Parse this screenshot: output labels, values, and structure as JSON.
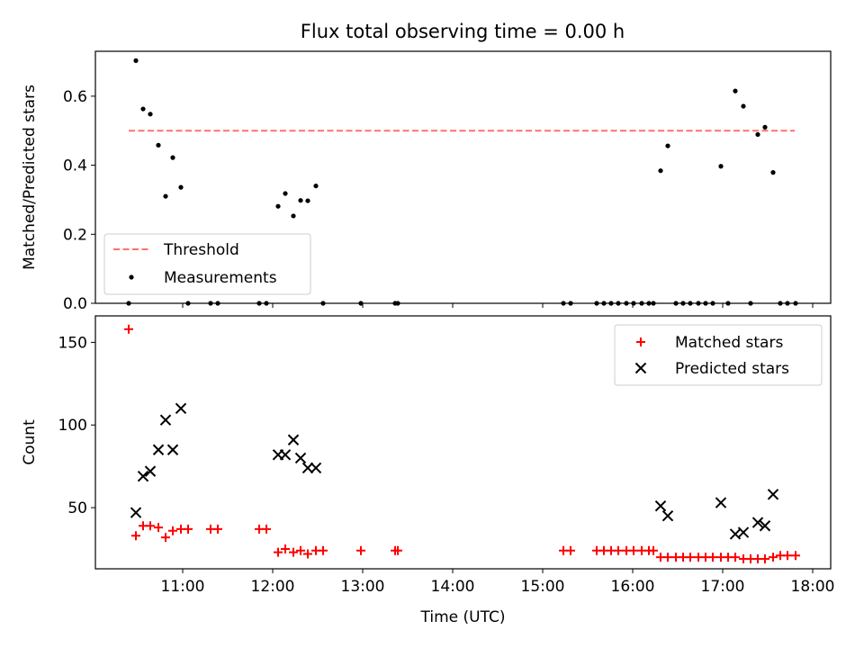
{
  "chart_data": [
    {
      "type": "scatter",
      "title": "Flux total observing time = 0.00 h",
      "xlabel": "",
      "ylabel": "Matched/Predicted stars",
      "xlim": [
        10.03,
        18.2
      ],
      "ylim": [
        0,
        0.73
      ],
      "yticks": [
        0.0,
        0.2,
        0.4,
        0.6
      ],
      "ytick_labels": [
        "0.0",
        "0.2",
        "0.4",
        "0.6"
      ],
      "grid": false,
      "legend_position": "lower-left",
      "threshold": {
        "name": "Threshold",
        "y": 0.5,
        "x_start": 10.4,
        "x_end": 17.8,
        "color": "#ff7070"
      },
      "series": [
        {
          "name": "Measurements",
          "color": "#000000",
          "points": [
            [
              10.4,
              0.0
            ],
            [
              10.48,
              0.703
            ],
            [
              10.56,
              0.563
            ],
            [
              10.64,
              0.548
            ],
            [
              10.73,
              0.458
            ],
            [
              10.81,
              0.31
            ],
            [
              10.89,
              0.422
            ],
            [
              10.98,
              0.336
            ],
            [
              11.06,
              0.0
            ],
            [
              11.31,
              0.0
            ],
            [
              11.39,
              0.0
            ],
            [
              11.85,
              0.0
            ],
            [
              11.93,
              0.0
            ],
            [
              12.06,
              0.281
            ],
            [
              12.14,
              0.318
            ],
            [
              12.23,
              0.253
            ],
            [
              12.31,
              0.298
            ],
            [
              12.39,
              0.297
            ],
            [
              12.48,
              0.34
            ],
            [
              12.56,
              0.0
            ],
            [
              12.98,
              0.0
            ],
            [
              13.36,
              0.0
            ],
            [
              13.39,
              0.0
            ],
            [
              15.23,
              0.0
            ],
            [
              15.31,
              0.0
            ],
            [
              15.6,
              0.0
            ],
            [
              15.68,
              0.0
            ],
            [
              15.76,
              0.0
            ],
            [
              15.84,
              0.0
            ],
            [
              15.93,
              0.0
            ],
            [
              16.01,
              0.0
            ],
            [
              16.1,
              0.0
            ],
            [
              16.18,
              0.0
            ],
            [
              16.23,
              0.0
            ],
            [
              16.31,
              0.384
            ],
            [
              16.39,
              0.456
            ],
            [
              16.48,
              0.0
            ],
            [
              16.56,
              0.0
            ],
            [
              16.64,
              0.0
            ],
            [
              16.73,
              0.0
            ],
            [
              16.81,
              0.0
            ],
            [
              16.89,
              0.0
            ],
            [
              16.98,
              0.397
            ],
            [
              17.06,
              0.0
            ],
            [
              17.14,
              0.615
            ],
            [
              17.23,
              0.571
            ],
            [
              17.31,
              0.0
            ],
            [
              17.39,
              0.489
            ],
            [
              17.47,
              0.51
            ],
            [
              17.56,
              0.379
            ],
            [
              17.64,
              0.0
            ],
            [
              17.72,
              0.0
            ],
            [
              17.81,
              0.0
            ]
          ]
        }
      ]
    },
    {
      "type": "scatter",
      "title": "",
      "xlabel": "Time (UTC)",
      "ylabel": "Count",
      "xlim": [
        10.03,
        18.2
      ],
      "ylim": [
        13,
        166
      ],
      "yticks": [
        50,
        100,
        150
      ],
      "ytick_labels": [
        "50",
        "100",
        "150"
      ],
      "xticks": [
        11,
        12,
        13,
        14,
        15,
        16,
        17,
        18
      ],
      "xtick_labels": [
        "11:00",
        "12:00",
        "13:00",
        "14:00",
        "15:00",
        "16:00",
        "17:00",
        "18:00"
      ],
      "grid": false,
      "legend_position": "upper-right",
      "series": [
        {
          "name": "Matched stars",
          "color": "#ff0000",
          "marker": "plus",
          "points": [
            [
              10.4,
              158
            ],
            [
              10.48,
              33
            ],
            [
              10.56,
              39
            ],
            [
              10.64,
              39
            ],
            [
              10.73,
              38
            ],
            [
              10.81,
              32
            ],
            [
              10.89,
              36
            ],
            [
              10.98,
              37
            ],
            [
              11.06,
              37
            ],
            [
              11.31,
              37
            ],
            [
              11.39,
              37
            ],
            [
              11.85,
              37
            ],
            [
              11.93,
              37
            ],
            [
              12.06,
              23
            ],
            [
              12.14,
              25
            ],
            [
              12.23,
              23
            ],
            [
              12.31,
              24
            ],
            [
              12.39,
              22
            ],
            [
              12.48,
              24
            ],
            [
              12.56,
              24
            ],
            [
              12.98,
              24
            ],
            [
              13.36,
              24
            ],
            [
              13.39,
              24
            ],
            [
              15.23,
              24
            ],
            [
              15.31,
              24
            ],
            [
              15.6,
              24
            ],
            [
              15.68,
              24
            ],
            [
              15.76,
              24
            ],
            [
              15.84,
              24
            ],
            [
              15.93,
              24
            ],
            [
              16.01,
              24
            ],
            [
              16.1,
              24
            ],
            [
              16.18,
              24
            ],
            [
              16.23,
              24
            ],
            [
              16.31,
              20
            ],
            [
              16.39,
              20
            ],
            [
              16.48,
              20
            ],
            [
              16.56,
              20
            ],
            [
              16.64,
              20
            ],
            [
              16.73,
              20
            ],
            [
              16.81,
              20
            ],
            [
              16.89,
              20
            ],
            [
              16.98,
              20
            ],
            [
              17.06,
              20
            ],
            [
              17.14,
              20
            ],
            [
              17.23,
              19
            ],
            [
              17.31,
              19
            ],
            [
              17.39,
              19
            ],
            [
              17.47,
              19
            ],
            [
              17.56,
              20
            ],
            [
              17.64,
              21
            ],
            [
              17.72,
              21
            ],
            [
              17.81,
              21
            ]
          ]
        },
        {
          "name": "Predicted stars",
          "color": "#000000",
          "marker": "x",
          "points": [
            [
              10.48,
              47
            ],
            [
              10.56,
              69
            ],
            [
              10.64,
              72
            ],
            [
              10.73,
              85
            ],
            [
              10.81,
              103
            ],
            [
              10.89,
              85
            ],
            [
              10.98,
              110
            ],
            [
              12.06,
              82
            ],
            [
              12.14,
              82
            ],
            [
              12.23,
              91
            ],
            [
              12.31,
              80
            ],
            [
              12.39,
              74
            ],
            [
              12.48,
              74
            ],
            [
              16.31,
              51
            ],
            [
              16.39,
              45
            ],
            [
              16.98,
              53
            ],
            [
              17.14,
              34
            ],
            [
              17.23,
              35
            ],
            [
              17.39,
              41
            ],
            [
              17.47,
              39
            ],
            [
              17.56,
              58
            ]
          ]
        }
      ]
    }
  ]
}
